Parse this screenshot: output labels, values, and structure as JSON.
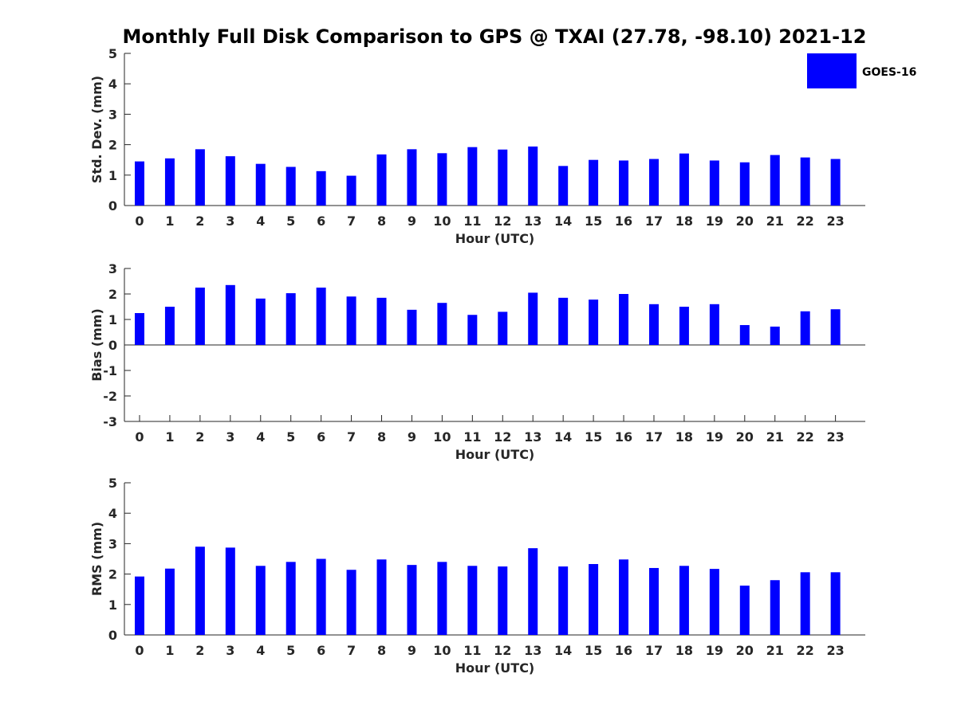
{
  "colors": {
    "bar": "#0000ff",
    "axis": "#262626",
    "background": "#ffffff"
  },
  "chart_data": {
    "type": "bar",
    "title": "Monthly Full Disk Comparison to GPS @ TXAI (27.78, -98.10) 2021-12",
    "legend": {
      "position": "top-right",
      "entries": [
        "GOES-16"
      ]
    },
    "grid": false,
    "categories": [
      "0",
      "1",
      "2",
      "3",
      "4",
      "5",
      "6",
      "7",
      "8",
      "9",
      "10",
      "11",
      "12",
      "13",
      "14",
      "15",
      "16",
      "17",
      "18",
      "19",
      "20",
      "21",
      "22",
      "23"
    ],
    "panels": [
      {
        "xlabel": "Hour (UTC)",
        "ylabel": "Std. Dev. (mm)",
        "ylim": [
          0,
          5
        ],
        "yticks": [
          "0",
          "1",
          "2",
          "3",
          "4",
          "5"
        ],
        "series": [
          {
            "name": "GOES-16",
            "values": [
              1.45,
              1.55,
              1.85,
              1.62,
              1.37,
              1.27,
              1.13,
              0.98,
              1.68,
              1.85,
              1.72,
              1.92,
              1.84,
              1.94,
              1.3,
              1.5,
              1.48,
              1.53,
              1.71,
              1.48,
              1.42,
              1.66,
              1.58,
              1.53
            ]
          }
        ]
      },
      {
        "xlabel": "Hour (UTC)",
        "ylabel": "Bias (mm)",
        "ylim": [
          -3,
          3
        ],
        "yticks": [
          "-3",
          "-2",
          "-1",
          "0",
          "1",
          "2",
          "3"
        ],
        "series": [
          {
            "name": "GOES-16",
            "values": [
              1.25,
              1.5,
              2.25,
              2.35,
              1.82,
              2.03,
              2.25,
              1.9,
              1.85,
              1.38,
              1.65,
              1.18,
              1.3,
              2.05,
              1.85,
              1.78,
              2.0,
              1.6,
              1.5,
              1.6,
              0.78,
              0.72,
              1.32,
              1.4
            ]
          }
        ]
      },
      {
        "xlabel": "Hour (UTC)",
        "ylabel": "RMS (mm)",
        "ylim": [
          0,
          5
        ],
        "yticks": [
          "0",
          "1",
          "2",
          "3",
          "4",
          "5"
        ],
        "series": [
          {
            "name": "GOES-16",
            "values": [
              1.92,
              2.18,
              2.9,
              2.87,
              2.27,
              2.4,
              2.5,
              2.14,
              2.48,
              2.3,
              2.4,
              2.27,
              2.25,
              2.85,
              2.25,
              2.33,
              2.48,
              2.2,
              2.27,
              2.17,
              1.62,
              1.8,
              2.06,
              2.06
            ]
          }
        ]
      }
    ]
  }
}
